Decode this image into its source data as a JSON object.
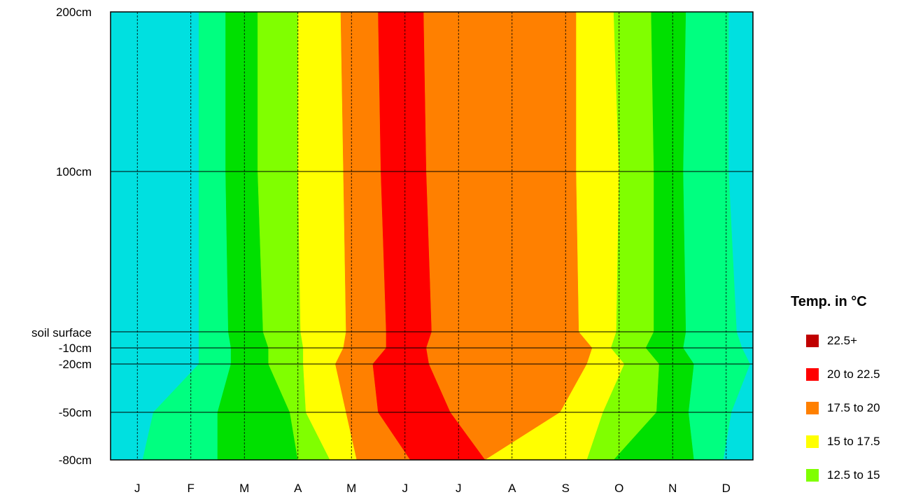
{
  "chart_data": {
    "type": "heatmap",
    "xlabel": "",
    "ylabel": "",
    "x_categories": [
      "J",
      "F",
      "M",
      "A",
      "M",
      "J",
      "J",
      "A",
      "S",
      "O",
      "N",
      "D"
    ],
    "y_levels": [
      "200cm",
      "100cm",
      "soil surface",
      "-10cm",
      "-20cm",
      "-50cm",
      "-80cm"
    ],
    "grid": true,
    "legend": {
      "title": "Temp. in °C",
      "placement": "right",
      "entries": [
        {
          "label": "22.5+",
          "color": "#c00000"
        },
        {
          "label": "20 to 22.5",
          "color": "#ff0000"
        },
        {
          "label": "17.5 to 20",
          "color": "#ff8000"
        },
        {
          "label": "15 to 17.5",
          "color": "#ffff00"
        },
        {
          "label": "12.5 to 15",
          "color": "#80ff00"
        }
      ]
    },
    "band_colors": [
      "#66b2ff",
      "#00e0e0",
      "#00ff80",
      "#00e000",
      "#80ff00",
      "#ffff00",
      "#ff8000",
      "#ff0000"
    ],
    "band_boundaries_month": [
      [
        1.65,
        2.15,
        2.75,
        3.5,
        4.3,
        5.0,
        5.85,
        8.7,
        9.4,
        10.1,
        10.75,
        11.55
      ],
      [
        1.65,
        2.15,
        2.75,
        3.5,
        4.35,
        5.05,
        5.9,
        8.7,
        9.5,
        10.15,
        10.7,
        11.55
      ],
      [
        1.65,
        2.2,
        2.85,
        3.55,
        4.4,
        5.15,
        6.0,
        8.75,
        9.45,
        10.15,
        10.75,
        11.7
      ],
      [
        1.65,
        2.25,
        2.95,
        3.6,
        4.35,
        5.15,
        5.9,
        9.0,
        9.35,
        10.0,
        10.7,
        11.8
      ],
      [
        1.65,
        2.25,
        2.95,
        3.6,
        4.2,
        4.9,
        5.95,
        8.9,
        9.6,
        10.25,
        10.9,
        11.95
      ],
      [
        0.8,
        2.0,
        3.35,
        3.65,
        4.4,
        5.0,
        6.35,
        8.4,
        9.2,
        10.2,
        10.8,
        11.6
      ],
      [
        0.6,
        2.0,
        3.5,
        4.1,
        4.6,
        5.6,
        7.0,
        7.0,
        8.9,
        9.4,
        10.9,
        11.45
      ]
    ]
  }
}
